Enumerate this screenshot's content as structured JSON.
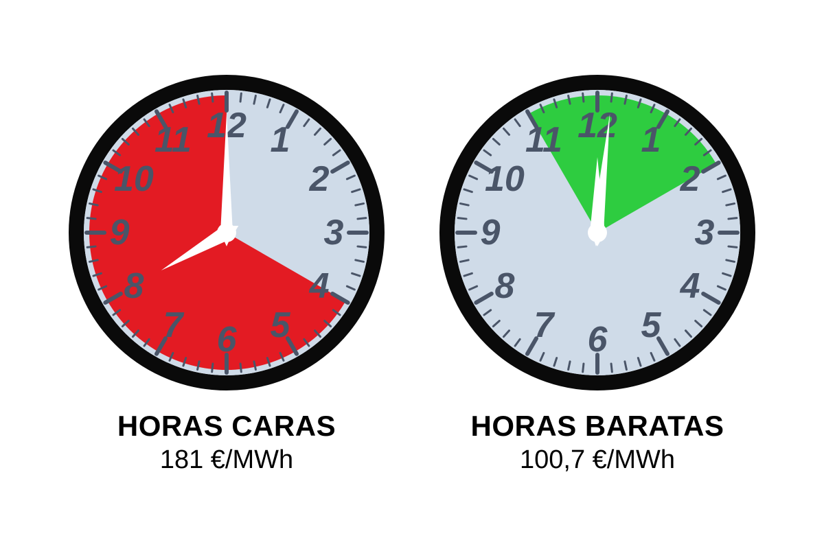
{
  "clocks": [
    {
      "id": "expensive",
      "title": "HORAS CARAS",
      "price": "181 €/MWh",
      "face_color": "#cfdbe8",
      "sector_color": "#e31b23",
      "bezel_color": "#0a0a0a",
      "tick_color": "#4a5568",
      "numeral_color": "#4a5568",
      "hand_color": "#ffffff",
      "sector_start_hour": 4,
      "sector_end_hour": 12,
      "hour_hand_at": 8,
      "minute_hand_at": 0,
      "numeral_fontsize": 52
    },
    {
      "id": "cheap",
      "title": "HORAS BARATAS",
      "price": "100,7 €/MWh",
      "face_color": "#cfdbe8",
      "sector_color": "#2ecc40",
      "bezel_color": "#0a0a0a",
      "tick_color": "#4a5568",
      "numeral_color": "#4a5568",
      "hand_color": "#ffffff",
      "sector_start_hour": 11,
      "sector_end_hour": 2,
      "hour_hand_at": 12,
      "minute_hand_at": 1,
      "numeral_fontsize": 52
    }
  ],
  "geometry": {
    "size": 460,
    "bezel_width": 22,
    "face_radius": 208,
    "sector_radius": 200,
    "major_tick_inner": 178,
    "major_tick_outer": 204,
    "minor_tick_inner": 192,
    "minor_tick_outer": 204,
    "numeral_radius": 156,
    "hour_hand_len": 110,
    "minute_hand_len": 174,
    "hand_tail": 20,
    "hub_radius": 14
  }
}
